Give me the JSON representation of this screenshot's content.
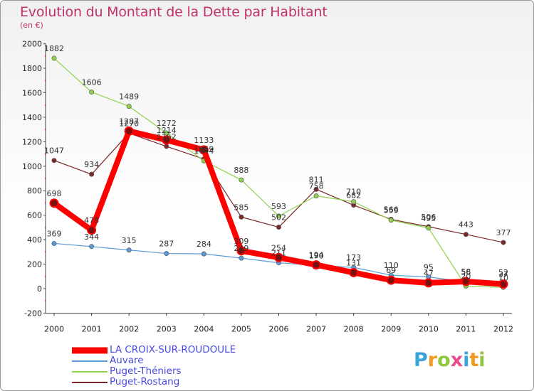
{
  "title": "Evolution du Montant de la Dette par Habitant",
  "subtitle": "(en €)",
  "brand": {
    "letters": [
      "P",
      "r",
      "o",
      "x",
      "i",
      "t",
      "i"
    ],
    "colors": [
      "#3aa3dd",
      "#f29a1f",
      "#8fc63e",
      "#e84c8a",
      "#3aa3dd",
      "#f29a1f",
      "#8fc63e"
    ]
  },
  "chart_data": {
    "type": "line",
    "title": "Evolution du Montant de la Dette par Habitant",
    "subtitle": "(en €)",
    "xlabel": "",
    "ylabel": "",
    "x": [
      "2000",
      "2001",
      "2002",
      "2003",
      "2004",
      "2005",
      "2006",
      "2007",
      "2008",
      "2009",
      "2010",
      "2011",
      "2012"
    ],
    "ylim": [
      -200,
      2000
    ],
    "yticks": [
      -200,
      0,
      200,
      400,
      600,
      800,
      1000,
      1200,
      1400,
      1600,
      1800,
      2000
    ],
    "grid": false,
    "legend_position": "bottom-left",
    "series": [
      {
        "name": "LA CROIX-SUR-ROUDOULE",
        "color": "#ff0000",
        "values": [
          698,
          478,
          1287,
          1214,
          1133,
          309,
          254,
          194,
          131,
          69,
          47,
          58,
          37
        ]
      },
      {
        "name": "Auvare",
        "color": "#5b9bd5",
        "values": [
          369,
          344,
          315,
          287,
          284,
          249,
          211,
          190,
          173,
          110,
          95,
          56,
          52
        ]
      },
      {
        "name": "Puget-Théniers",
        "color": "#8fd14f",
        "values": [
          1882,
          1606,
          1489,
          1272,
          1044,
          888,
          593,
          758,
          710,
          559,
          495,
          20,
          10
        ]
      },
      {
        "name": "Puget-Rostang",
        "color": "#7b2a2a",
        "values": [
          1047,
          934,
          1270,
          1162,
          1059,
          585,
          502,
          811,
          682,
          566,
          506,
          443,
          377
        ]
      }
    ]
  }
}
